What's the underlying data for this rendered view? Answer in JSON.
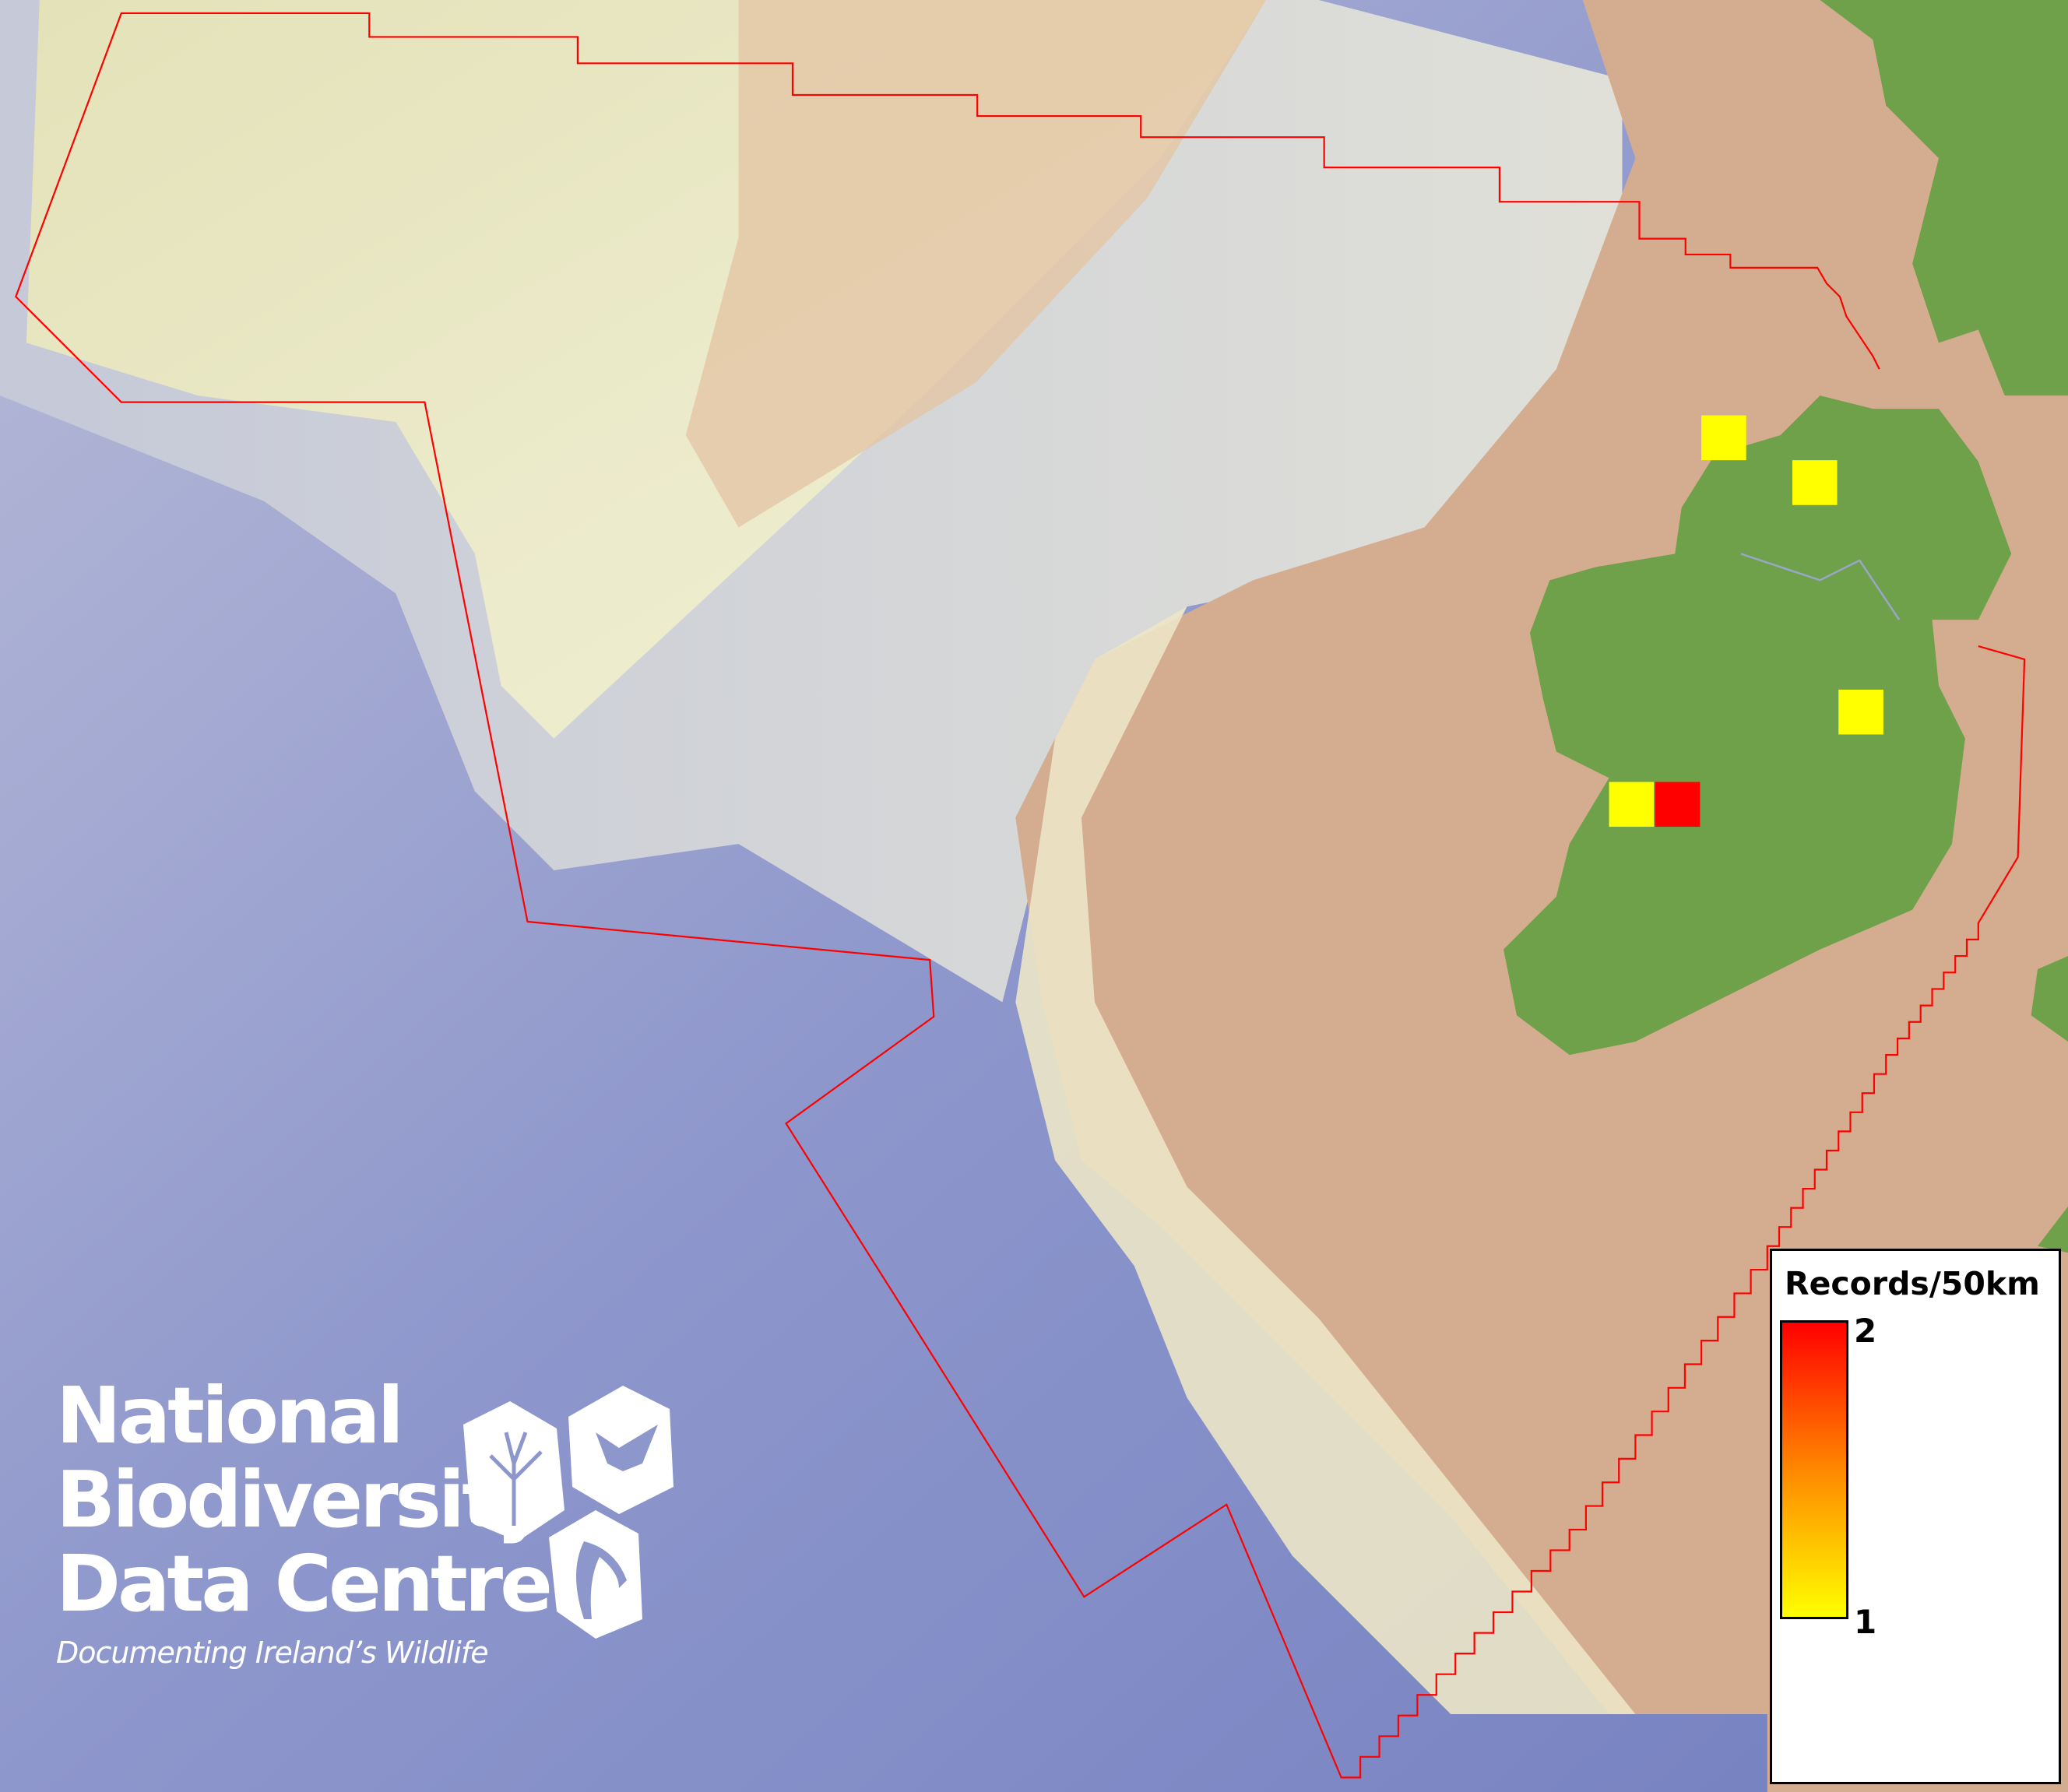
{
  "map": {
    "colors": {
      "deep_sea": "#7f89c4",
      "shelf": "#e8e6c0",
      "shallow": "#d4ad90",
      "land": "#6fa04a",
      "boundary": "#ff0000",
      "low": "#ffff00",
      "high": "#ff0000"
    },
    "records": [
      {
        "value": 1,
        "color": "#ffff00"
      },
      {
        "value": 1,
        "color": "#ffff00"
      },
      {
        "value": 1,
        "color": "#ffff00"
      },
      {
        "value": 1,
        "color": "#ffff00"
      },
      {
        "value": 2,
        "color": "#ff0000"
      }
    ]
  },
  "legend": {
    "title": "Records/50km",
    "max_label": "2",
    "min_label": "1"
  },
  "logo": {
    "line1": "National",
    "line2": "Biodiversity",
    "line3": "Data Centre",
    "tagline": "Documenting Ireland’s Wildlife",
    "icons": [
      "tree-icon",
      "butterfly-icon",
      "seahorse-icon"
    ]
  }
}
